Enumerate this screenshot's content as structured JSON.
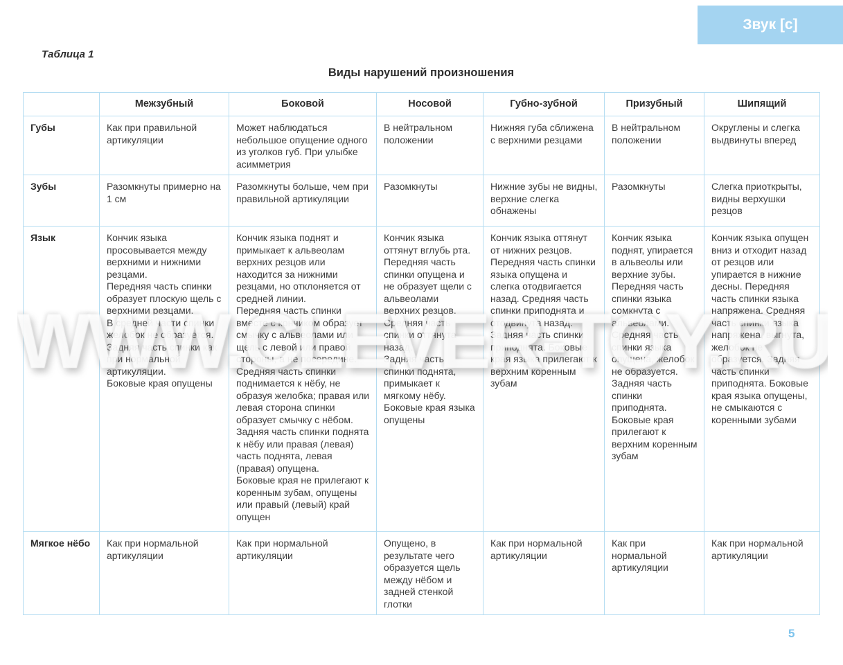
{
  "badge": {
    "label": "Звук [с]"
  },
  "header": {
    "table_label": "Таблица 1",
    "title": "Виды нарушений произношения"
  },
  "watermark": "WWW.CLEVER-TOY.RU",
  "page_number": "5",
  "colors": {
    "badge_blue": "#a4d4f1",
    "border_blue": "#b5ddf2",
    "page_number_blue": "#7cc3ec",
    "text": "#3f3f3f"
  },
  "table": {
    "columns": [
      "",
      "Межзубный",
      "Боковой",
      "Носовой",
      "Губно-зубной",
      "Призубный",
      "Шипящий"
    ],
    "rows": [
      {
        "label": "Губы",
        "cells": [
          "Как при правильной артикуляции",
          "Может наблюдаться небольшое опущение одного из уголков губ. При улыбке асимметрия",
          "В нейтральном положении",
          "Нижняя губа сближена с верхними резцами",
          "В нейтральном положении",
          "Округлены и слегка выдвинуты вперед"
        ]
      },
      {
        "label": "Зубы",
        "cells": [
          "Разомкнуты примерно на 1 см",
          "Разомкнуты больше, чем при правильной артикуляции",
          "Разомкнуты",
          "Нижние зубы не видны, верхние слегка обнажены",
          "Разомкнуты",
          "Слегка приоткрыты, видны верхушки резцов"
        ]
      },
      {
        "label": "Язык",
        "cells": [
          "Кончик языка просовывается между верхними и нижними резцами.\nПередняя часть спинки образует плоскую щель с верхними резцами.\nВ средней части спинки желобок не образуется.\nЗадняя часть спинки как при нормальной артикуляции.\nБоковые края опущены",
          "Кончик языка поднят и примыкает к альвеолам верхних резцов или находится за нижними резцами, но отклоняется от средней линии.\nПередняя часть спинки вместе с кончиком образует смычку с альвеолами или щель с левой или правой стороны, а не посередине.\nСредняя часть спинки поднимается к нёбу, не образуя желобка; правая или левая сторона спинки образует смычку с нёбом.\nЗадняя часть спинки поднята к нёбу или правая (левая) часть поднята, левая (правая) опущена.\nБоковые края не прилегают к коренным зубам, опущены или правый (левый) край опущен",
          "Кончик языка оттянут вглубь рта.\nПередняя часть спинки опущена и не образует щели с альвеолами верхних резцов.\nСредняя часть спинки оттянута назад.\nЗадняя часть спинки поднята, примыкает к мягкому нёбу.\nБоковые края языка опущены",
          "Кончик языка оттянут от нижних резцов. Передняя часть спинки языка опущена и слегка отодвигается назад. Средняя часть спинки приподнята и отодвинута назад. Задняя часть спинки приподнята. Боковые края языка прилегают к верхним коренным зубам",
          "Кончик языка поднят, упирается в альвеолы или верхние зубы.\nПередняя часть спинки языка сомкнута с альвеолами. Средняя часть спинки языка опущена, желобок не образуется.\nЗадняя часть спинки приподнята.\nБоковые края прилегают к верхним коренным зубам",
          "Кончик языка опущен вниз и отходит назад от резцов или упирается в нижние десны. Передняя часть спинки языка напряжена. Средняя часть спинки языка напряжена, выгнута, желобок не образуется. Задняя часть спинки приподнята. Боковые края языка опущены, не смыкаются с коренными зубами"
        ]
      },
      {
        "label": "Мягкое нёбо",
        "cells": [
          "Как при нормальной артикуляции",
          "Как при нормальной артикуляции",
          "Опущено, в результате чего образуется щель между нёбом и задней стенкой глотки",
          "Как при нормальной артикуляции",
          "Как при нормальной артикуляции",
          "Как при нормальной артикуляции"
        ]
      }
    ]
  }
}
